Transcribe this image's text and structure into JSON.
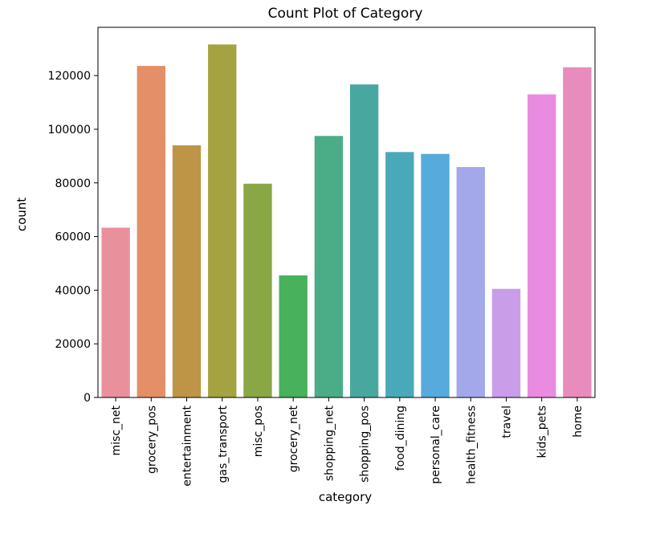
{
  "chart_data": {
    "type": "bar",
    "title": "Count Plot of Category",
    "xlabel": "category",
    "ylabel": "count",
    "categories": [
      "misc_net",
      "grocery_pos",
      "entertainment",
      "gas_transport",
      "misc_pos",
      "grocery_net",
      "shopping_net",
      "shopping_pos",
      "food_dining",
      "personal_care",
      "health_fitness",
      "travel",
      "kids_pets",
      "home"
    ],
    "values": [
      63300,
      123600,
      94000,
      131600,
      79700,
      45500,
      97500,
      116700,
      91500,
      90800,
      85900,
      40500,
      113000,
      123100
    ],
    "colors": [
      "#e8919c",
      "#e48f68",
      "#be9547",
      "#a5a241",
      "#8aa745",
      "#47b15c",
      "#4bac88",
      "#48a8a0",
      "#4aa9b8",
      "#56aadc",
      "#a2a8ea",
      "#c99de8",
      "#e98be0",
      "#e88cbd"
    ],
    "yticks": [
      0,
      20000,
      40000,
      60000,
      80000,
      100000,
      120000
    ],
    "ylim": [
      0,
      138000
    ],
    "grid": false,
    "legend": "none"
  }
}
